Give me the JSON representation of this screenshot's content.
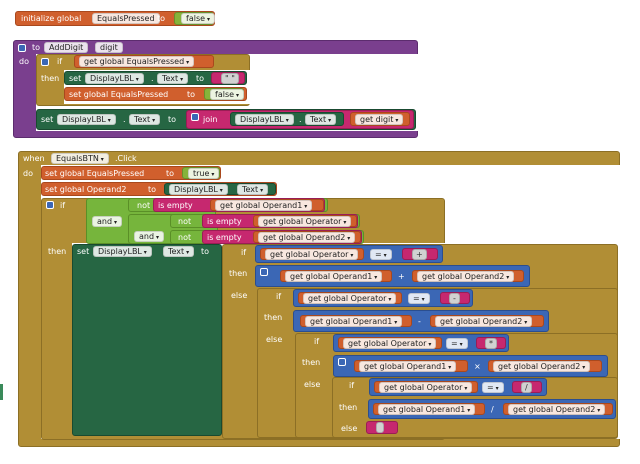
{
  "init": {
    "kw": "initialize global",
    "name": "EqualsPressed",
    "to": "to",
    "value": "false"
  },
  "proc": {
    "to": "to",
    "name": "AddDigit",
    "param": "digit",
    "do": "do",
    "if": "if",
    "then": "then",
    "get_eq": "get global EqualsPressed",
    "set": "set",
    "comp": "DisplayLBL",
    "prop": "Text",
    "to2": "to",
    "str_empty": "\" \"",
    "set_eq": "set global EqualsPressed",
    "false": "false",
    "join": "join",
    "get_digit": "get digit",
    "dot": "."
  },
  "ev": {
    "when": "when",
    "comp": "EqualsBTN",
    "event": ".Click",
    "do": "do",
    "set_eq": "set global EqualsPressed",
    "to": "to",
    "true": "true",
    "set_op2": "set global Operand2",
    "disp": "DisplayLBL",
    "text": "Text",
    "if": "if",
    "not": "not",
    "is_empty": "is empty",
    "get_op1": "get global Operand1",
    "get_op2": "get global Operand2",
    "get_opr": "get global Operator",
    "and": "and",
    "then": "then",
    "else": "else",
    "eq": "=",
    "plus": "+",
    "minus": "-",
    "times": "×",
    "div": "/",
    "s_plus": "+",
    "s_minus": "-",
    "s_times": "*",
    "s_div": "/",
    "s_empty": " "
  }
}
